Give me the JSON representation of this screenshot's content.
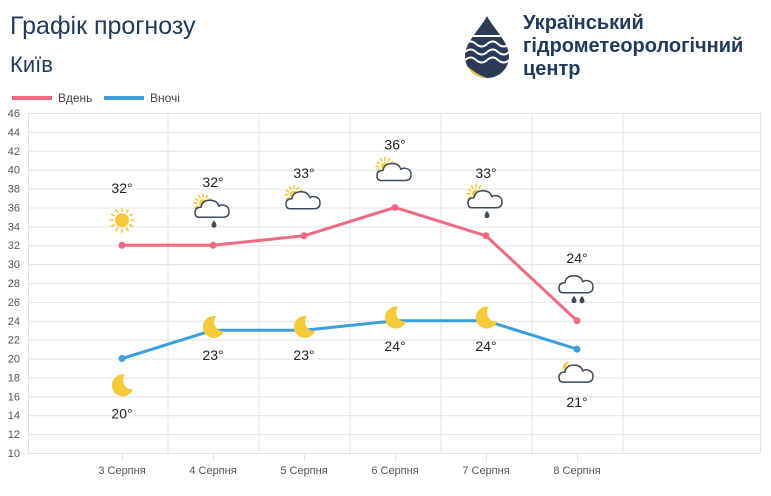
{
  "header": {
    "title": "Графік прогнозу",
    "subtitle": "Київ",
    "org_lines": [
      "Український",
      "гідрометеорологічний",
      "центр"
    ]
  },
  "colors": {
    "day": "#ef6b84",
    "night": "#3d9fdb",
    "title": "#1f3a5a",
    "grid": "#e3e3e3",
    "sun": "#f7c83e",
    "moon": "#f5cb3c"
  },
  "chart_data": {
    "type": "line",
    "categories": [
      "3 Серпня",
      "4 Серпня",
      "5 Серпня",
      "6 Серпня",
      "7 Серпня",
      "8 Серпня"
    ],
    "y_ticks": [
      10,
      12,
      14,
      16,
      18,
      20,
      22,
      24,
      26,
      28,
      30,
      32,
      34,
      36,
      38,
      40,
      42,
      44,
      46
    ],
    "ylim": [
      10,
      46
    ],
    "grid": true,
    "legend_position": "top-left",
    "series": [
      {
        "name": "Вдень",
        "values": [
          32,
          32,
          33,
          36,
          33,
          24
        ],
        "labels": [
          "32°",
          "32°",
          "33°",
          "36°",
          "33°",
          "24°"
        ],
        "icons": [
          "sun-icon",
          "sun-cloud-rain-icon",
          "sun-cloud-icon",
          "sun-cloud-icon",
          "sun-cloud-rain-icon",
          "cloud-rain-icon"
        ]
      },
      {
        "name": "Вночі",
        "values": [
          20,
          23,
          23,
          24,
          24,
          21
        ],
        "labels": [
          "20°",
          "23°",
          "23°",
          "24°",
          "24°",
          "21°"
        ],
        "icons": [
          "moon-icon",
          "moon-icon",
          "moon-icon",
          "moon-icon",
          "moon-icon",
          "moon-cloud-icon"
        ]
      }
    ]
  }
}
